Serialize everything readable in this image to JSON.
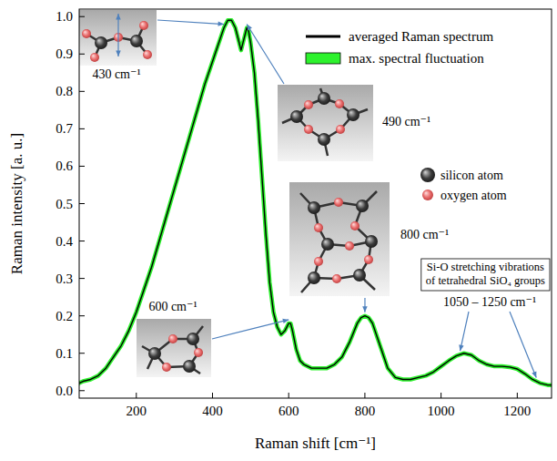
{
  "chart_data": {
    "type": "line",
    "x_label": "Raman shift [cm⁻¹]",
    "y_label": "Raman intensity [a. u.]",
    "x": [
      50,
      60,
      80,
      100,
      120,
      140,
      160,
      180,
      200,
      220,
      240,
      260,
      280,
      300,
      320,
      340,
      360,
      380,
      400,
      420,
      430,
      440,
      450,
      460,
      470,
      475,
      480,
      490,
      495,
      500,
      510,
      520,
      530,
      540,
      550,
      560,
      570,
      580,
      590,
      600,
      605,
      610,
      620,
      630,
      640,
      660,
      680,
      700,
      720,
      740,
      760,
      780,
      790,
      800,
      810,
      820,
      840,
      860,
      880,
      900,
      920,
      940,
      960,
      980,
      1000,
      1020,
      1040,
      1060,
      1080,
      1100,
      1120,
      1140,
      1160,
      1180,
      1200,
      1220,
      1240,
      1260,
      1280,
      1290
    ],
    "series": [
      {
        "name": "averaged Raman spectrum",
        "color": "#000000",
        "line_style": "solid",
        "values": [
          0.02,
          0.025,
          0.03,
          0.04,
          0.06,
          0.09,
          0.12,
          0.16,
          0.21,
          0.27,
          0.33,
          0.4,
          0.47,
          0.54,
          0.61,
          0.68,
          0.75,
          0.82,
          0.88,
          0.94,
          0.97,
          0.99,
          0.99,
          0.97,
          0.93,
          0.91,
          0.93,
          0.97,
          0.96,
          0.93,
          0.85,
          0.72,
          0.57,
          0.42,
          0.29,
          0.21,
          0.17,
          0.15,
          0.16,
          0.18,
          0.18,
          0.16,
          0.11,
          0.08,
          0.07,
          0.06,
          0.06,
          0.06,
          0.07,
          0.09,
          0.13,
          0.18,
          0.195,
          0.2,
          0.195,
          0.18,
          0.12,
          0.06,
          0.035,
          0.03,
          0.03,
          0.035,
          0.04,
          0.05,
          0.065,
          0.08,
          0.093,
          0.1,
          0.095,
          0.08,
          0.07,
          0.065,
          0.065,
          0.063,
          0.058,
          0.045,
          0.03,
          0.02,
          0.015,
          0.015
        ]
      },
      {
        "name": "max. spectral fluctuation",
        "color": "#2df22d",
        "line_style": "band",
        "values": [
          0.02,
          0.025,
          0.03,
          0.04,
          0.06,
          0.09,
          0.12,
          0.16,
          0.21,
          0.27,
          0.33,
          0.4,
          0.47,
          0.54,
          0.61,
          0.68,
          0.75,
          0.82,
          0.88,
          0.94,
          0.97,
          0.99,
          0.99,
          0.97,
          0.93,
          0.91,
          0.93,
          0.97,
          0.96,
          0.93,
          0.85,
          0.72,
          0.57,
          0.42,
          0.29,
          0.21,
          0.17,
          0.15,
          0.16,
          0.18,
          0.18,
          0.16,
          0.11,
          0.08,
          0.07,
          0.06,
          0.06,
          0.06,
          0.07,
          0.09,
          0.13,
          0.18,
          0.195,
          0.2,
          0.195,
          0.18,
          0.12,
          0.06,
          0.035,
          0.03,
          0.03,
          0.035,
          0.04,
          0.05,
          0.065,
          0.08,
          0.093,
          0.1,
          0.095,
          0.08,
          0.07,
          0.065,
          0.065,
          0.063,
          0.058,
          0.045,
          0.03,
          0.02,
          0.015,
          0.015
        ]
      }
    ],
    "xlim": [
      50,
      1290
    ],
    "ylim": [
      -0.02,
      1.02
    ],
    "xticks": [
      200,
      400,
      600,
      800,
      1000,
      1200
    ],
    "yticks": [
      {
        "value": 0,
        "label": "0.0"
      },
      0.1,
      0.2,
      0.3,
      0.4,
      0.5,
      0.6,
      0.7,
      0.8,
      0.9,
      {
        "value": 1,
        "label": "1.0"
      }
    ],
    "grid": false,
    "legend": "top",
    "annotations": [
      {
        "text": "430 cm⁻¹",
        "x": 430
      },
      {
        "text": "490 cm⁻¹",
        "x": 490
      },
      {
        "text": "600 cm⁻¹",
        "x": 600
      },
      {
        "text": "800 cm⁻¹",
        "x": 800
      },
      {
        "text": [
          "Si-O stretching vibrations",
          "of tetrahedral SiO₄ groups"
        ]
      },
      {
        "text": "1050 – 1250 cm⁻¹",
        "x": [
          1050,
          1250
        ]
      },
      {
        "text": "silicon atom",
        "color": "#3c3c3c"
      },
      {
        "text": "oxygen atom",
        "color": "#e86a6a"
      }
    ]
  }
}
